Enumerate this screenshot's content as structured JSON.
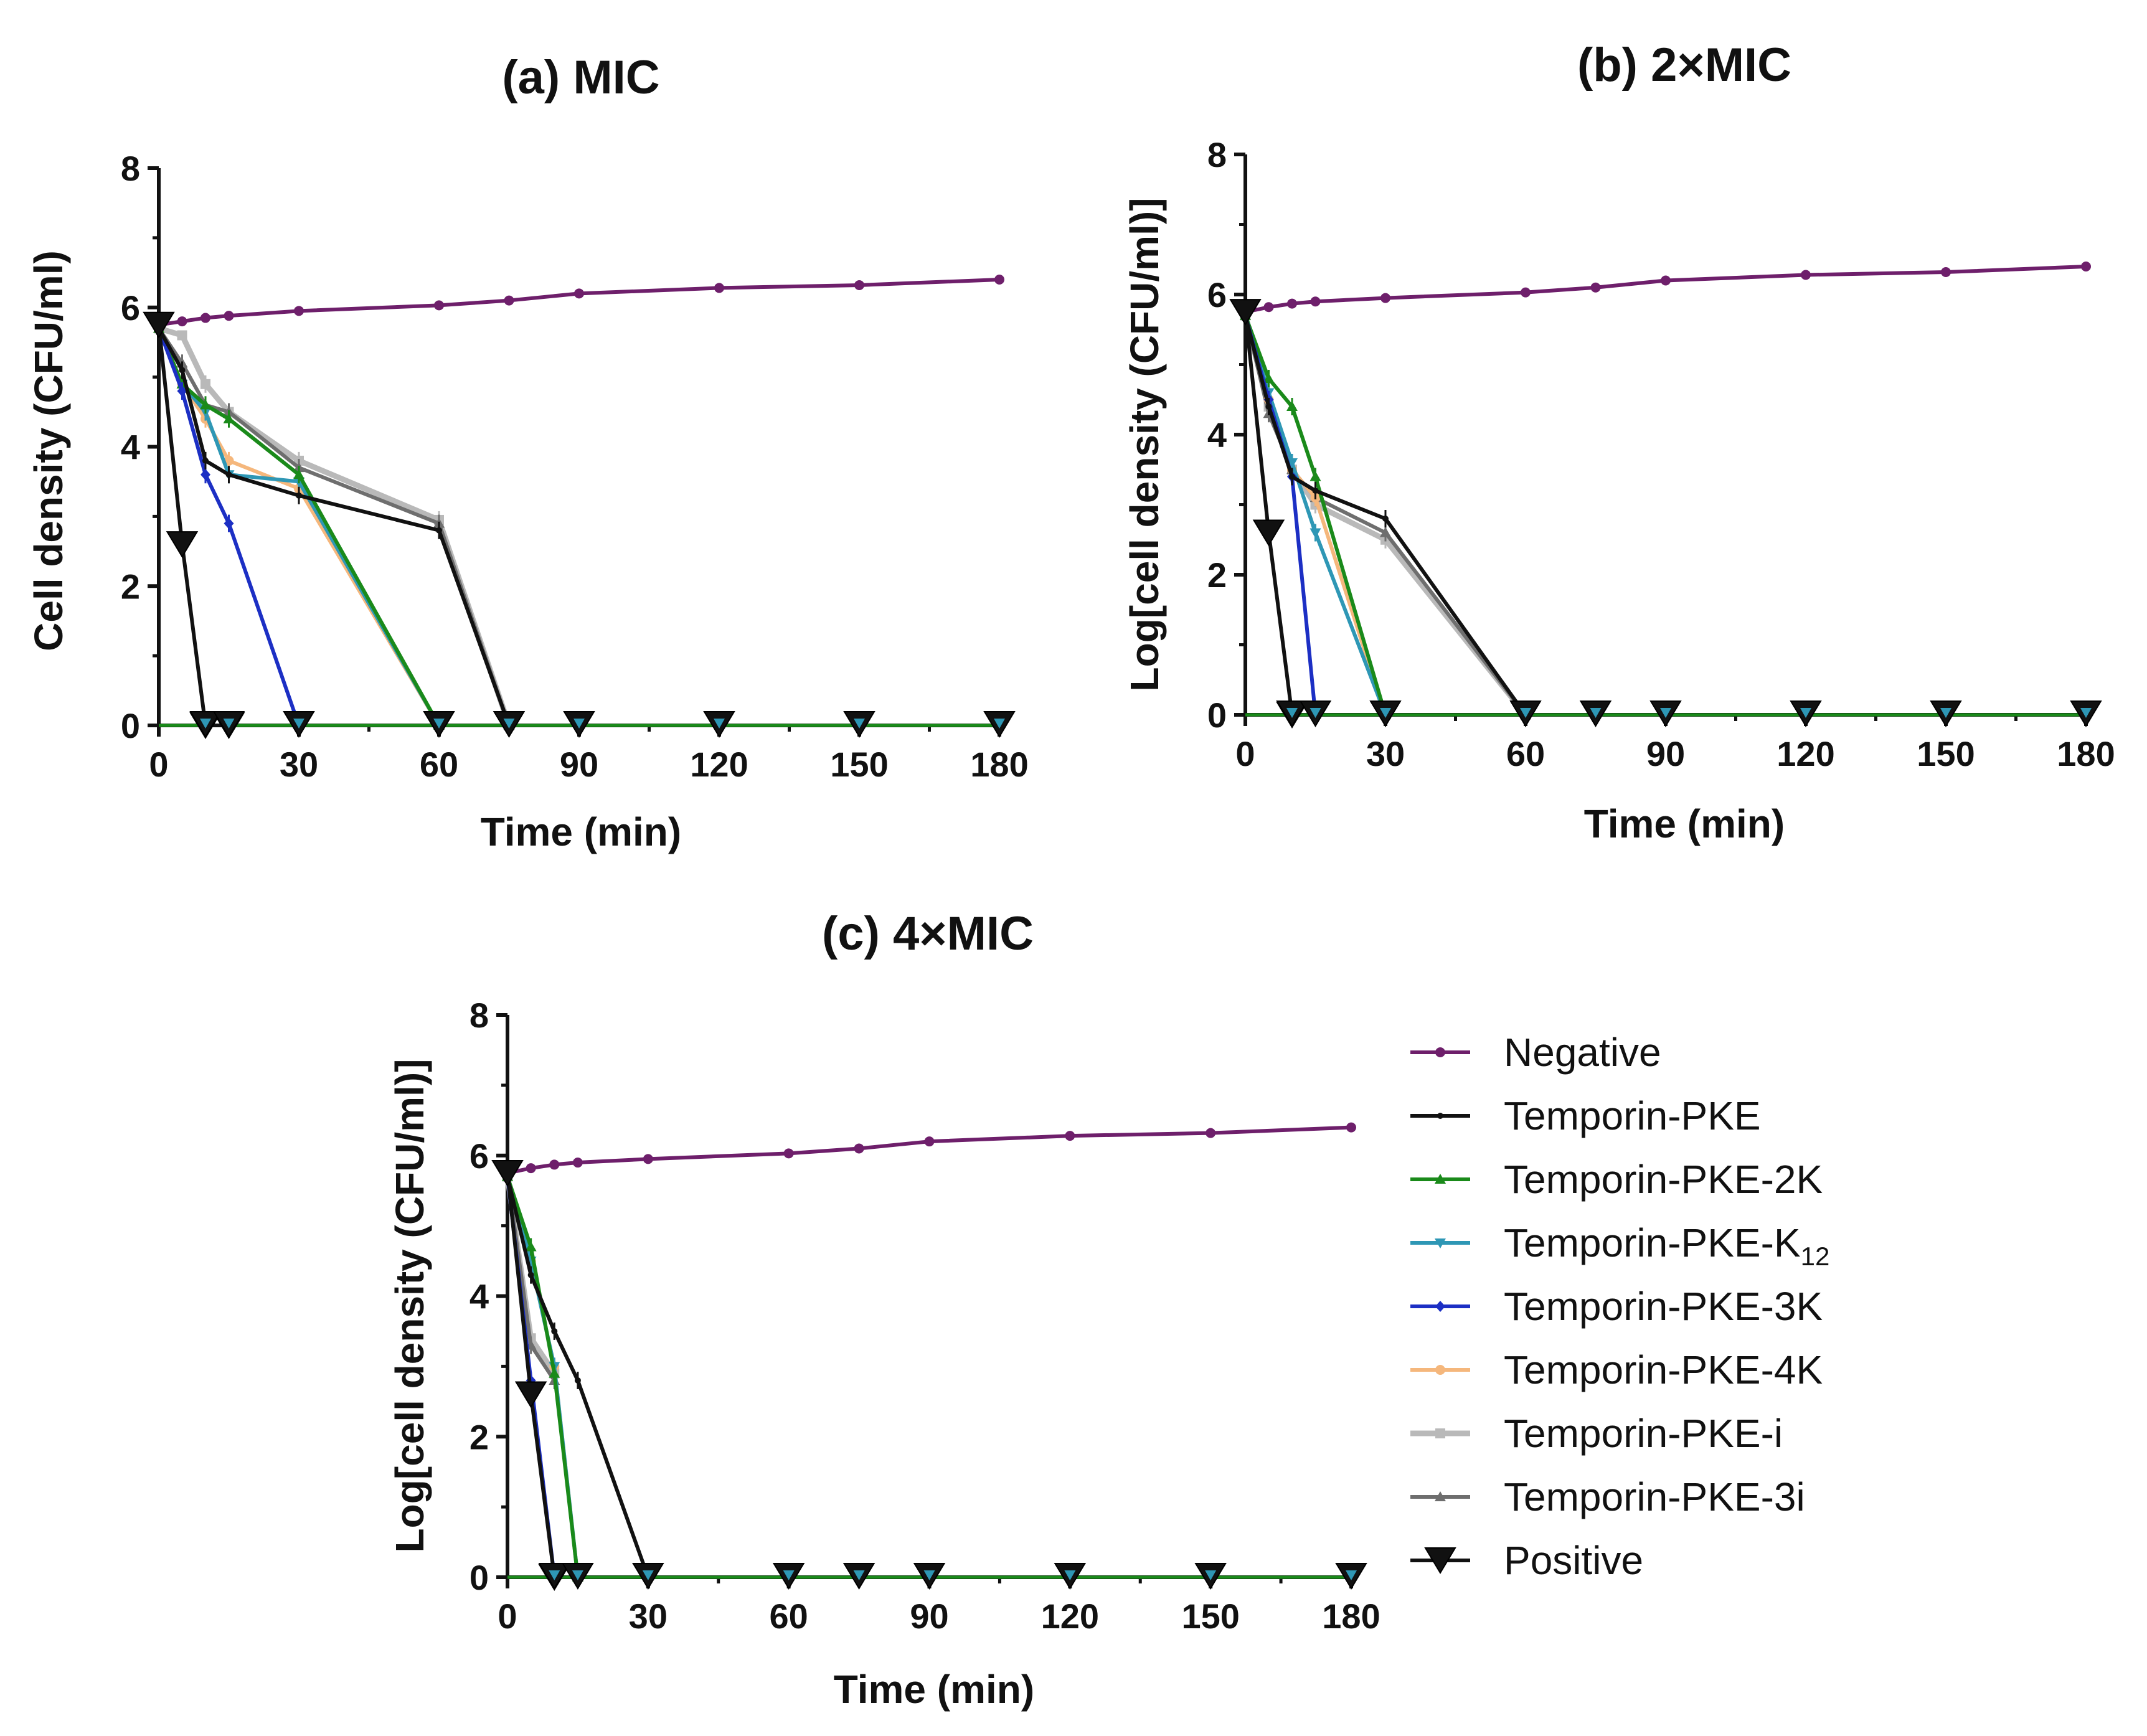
{
  "figure": {
    "background": "#ffffff"
  },
  "legend": {
    "items": [
      {
        "label": "Negative",
        "color": "#6e1f6b",
        "marker": "circle"
      },
      {
        "label": "Temporin-PKE",
        "color": "#111111",
        "marker": "dot"
      },
      {
        "label": "Temporin-PKE-2K",
        "color": "#1a8a1a",
        "marker": "triangle-up"
      },
      {
        "label": "Temporin-PKE-K",
        "sub": "12",
        "color": "#2e97b5",
        "marker": "triangle-down"
      },
      {
        "label": "Temporin-PKE-3K",
        "color": "#1c2fc4",
        "marker": "diamond"
      },
      {
        "label": "Temporin-PKE-4K",
        "color": "#f5b77c",
        "marker": "circle"
      },
      {
        "label": "Temporin-PKE-i",
        "color": "#b9b9b9",
        "marker": "square"
      },
      {
        "label": "Temporin-PKE-3i",
        "color": "#6e6e6e",
        "marker": "triangle-up"
      },
      {
        "label": "Positive",
        "color": "#111111",
        "marker": "big-triangle-down"
      }
    ]
  },
  "chart_data": [
    {
      "type": "line",
      "title": "(a) MIC",
      "xlabel": "Time (min)",
      "ylabel": "Cell density (CFU/ml)",
      "xlim": [
        0,
        180
      ],
      "ylim": [
        0,
        8
      ],
      "xticks": [
        "0",
        "30",
        "60",
        "90",
        "120",
        "150",
        "180"
      ],
      "yticks": [
        "0",
        "2",
        "4",
        "6",
        "8"
      ],
      "series": [
        {
          "name": "Negative",
          "x": [
            0,
            5,
            10,
            15,
            30,
            60,
            75,
            90,
            120,
            150,
            180
          ],
          "y": [
            5.75,
            5.8,
            5.85,
            5.88,
            5.95,
            6.03,
            6.1,
            6.2,
            6.28,
            6.32,
            6.4
          ]
        },
        {
          "name": "Temporin-PKE-i",
          "x": [
            0,
            5,
            10,
            15,
            30,
            60,
            75
          ],
          "y": [
            5.7,
            5.6,
            4.9,
            4.5,
            3.8,
            2.95,
            0
          ]
        },
        {
          "name": "Temporin-PKE-3i",
          "x": [
            0,
            5,
            10,
            15,
            30,
            60,
            75
          ],
          "y": [
            5.7,
            5.2,
            4.6,
            4.5,
            3.7,
            2.9,
            0
          ]
        },
        {
          "name": "Temporin-PKE-4K",
          "x": [
            0,
            5,
            10,
            15,
            30,
            60
          ],
          "y": [
            5.7,
            4.9,
            4.4,
            3.8,
            3.4,
            0
          ]
        },
        {
          "name": "Temporin-PKE-K12",
          "x": [
            0,
            5,
            10,
            15,
            30,
            60
          ],
          "y": [
            5.7,
            4.9,
            4.5,
            3.6,
            3.5,
            0
          ]
        },
        {
          "name": "Temporin-PKE-2K",
          "x": [
            0,
            5,
            10,
            15,
            30,
            60
          ],
          "y": [
            5.7,
            4.9,
            4.6,
            4.4,
            3.6,
            0
          ]
        },
        {
          "name": "Temporin-PKE-3K",
          "x": [
            0,
            5,
            10,
            15,
            30
          ],
          "y": [
            5.7,
            4.8,
            3.6,
            2.9,
            0
          ]
        },
        {
          "name": "Temporin-PKE",
          "x": [
            0,
            5,
            10,
            15,
            30,
            60,
            75
          ],
          "y": [
            5.7,
            5.1,
            3.8,
            3.6,
            3.3,
            2.8,
            0
          ]
        },
        {
          "name": "Positive",
          "x": [
            0,
            5,
            10,
            15
          ],
          "y": [
            5.75,
            2.6,
            0,
            0
          ]
        }
      ],
      "zero_markers": [
        10,
        15,
        30,
        60,
        75,
        90,
        120,
        150,
        180
      ]
    },
    {
      "type": "line",
      "title": "(b) 2×MIC",
      "xlabel": "Time (min)",
      "ylabel": "Log[cell density (CFU/ml)]",
      "xlim": [
        0,
        180
      ],
      "ylim": [
        0,
        8
      ],
      "xticks": [
        "0",
        "30",
        "60",
        "90",
        "120",
        "150",
        "180"
      ],
      "yticks": [
        "0",
        "2",
        "4",
        "6",
        "8"
      ],
      "series": [
        {
          "name": "Negative",
          "x": [
            0,
            5,
            10,
            15,
            30,
            60,
            75,
            90,
            120,
            150,
            180
          ],
          "y": [
            5.75,
            5.82,
            5.87,
            5.9,
            5.95,
            6.03,
            6.1,
            6.2,
            6.28,
            6.32,
            6.4
          ]
        },
        {
          "name": "Temporin-PKE-i",
          "x": [
            0,
            5,
            10,
            15,
            30,
            60
          ],
          "y": [
            5.7,
            4.4,
            3.5,
            3.0,
            2.5,
            0
          ]
        },
        {
          "name": "Temporin-PKE-3i",
          "x": [
            0,
            5,
            10,
            15,
            30,
            60
          ],
          "y": [
            5.7,
            4.3,
            3.5,
            3.1,
            2.6,
            0
          ]
        },
        {
          "name": "Temporin-PKE-4K",
          "x": [
            0,
            5,
            10,
            15,
            30
          ],
          "y": [
            5.7,
            4.5,
            3.5,
            3.1,
            0
          ]
        },
        {
          "name": "Temporin-PKE-K12",
          "x": [
            0,
            5,
            10,
            15,
            30
          ],
          "y": [
            5.7,
            4.6,
            3.6,
            2.6,
            0
          ]
        },
        {
          "name": "Temporin-PKE-2K",
          "x": [
            0,
            5,
            10,
            15,
            30
          ],
          "y": [
            5.7,
            4.8,
            4.4,
            3.4,
            0
          ]
        },
        {
          "name": "Temporin-PKE-3K",
          "x": [
            0,
            5,
            10,
            15
          ],
          "y": [
            5.7,
            4.5,
            3.4,
            0
          ]
        },
        {
          "name": "Temporin-PKE",
          "x": [
            0,
            5,
            10,
            15,
            30,
            60
          ],
          "y": [
            5.7,
            4.4,
            3.4,
            3.2,
            2.8,
            0
          ]
        },
        {
          "name": "Positive",
          "x": [
            0,
            5,
            10
          ],
          "y": [
            5.75,
            2.6,
            0
          ]
        }
      ],
      "zero_markers": [
        10,
        15,
        30,
        60,
        75,
        90,
        120,
        150,
        180
      ]
    },
    {
      "type": "line",
      "title": "(c) 4×MIC",
      "xlabel": "Time (min)",
      "ylabel": "Log[cell density (CFU/ml)]",
      "xlim": [
        0,
        180
      ],
      "ylim": [
        0,
        8
      ],
      "xticks": [
        "0",
        "30",
        "60",
        "90",
        "120",
        "150",
        "180"
      ],
      "yticks": [
        "0",
        "2",
        "4",
        "6",
        "8"
      ],
      "series": [
        {
          "name": "Negative",
          "x": [
            0,
            5,
            10,
            15,
            30,
            60,
            75,
            90,
            120,
            150,
            180
          ],
          "y": [
            5.75,
            5.82,
            5.87,
            5.9,
            5.95,
            6.03,
            6.1,
            6.2,
            6.28,
            6.32,
            6.4
          ]
        },
        {
          "name": "Temporin-PKE-i",
          "x": [
            0,
            5,
            10
          ],
          "y": [
            5.7,
            3.4,
            2.9
          ]
        },
        {
          "name": "Temporin-PKE-3i",
          "x": [
            0,
            5,
            10
          ],
          "y": [
            5.7,
            3.3,
            2.8
          ]
        },
        {
          "name": "Temporin-PKE-4K",
          "x": [
            0,
            5,
            10,
            15
          ],
          "y": [
            5.7,
            4.5,
            3.0,
            0
          ]
        },
        {
          "name": "Temporin-PKE-K12",
          "x": [
            0,
            5,
            10,
            15
          ],
          "y": [
            5.7,
            4.5,
            3.0,
            0
          ]
        },
        {
          "name": "Temporin-PKE-2K",
          "x": [
            0,
            5,
            10,
            15
          ],
          "y": [
            5.7,
            4.7,
            2.9,
            0
          ]
        },
        {
          "name": "Temporin-PKE-3K",
          "x": [
            0,
            5,
            10
          ],
          "y": [
            5.7,
            2.8,
            0
          ]
        },
        {
          "name": "Temporin-PKE",
          "x": [
            0,
            5,
            10,
            15,
            30
          ],
          "y": [
            5.7,
            4.3,
            3.5,
            2.8,
            0
          ]
        },
        {
          "name": "Positive",
          "x": [
            0,
            5,
            10
          ],
          "y": [
            5.75,
            2.6,
            0
          ]
        }
      ],
      "zero_markers": [
        10,
        15,
        30,
        60,
        75,
        90,
        120,
        150,
        180
      ]
    }
  ]
}
